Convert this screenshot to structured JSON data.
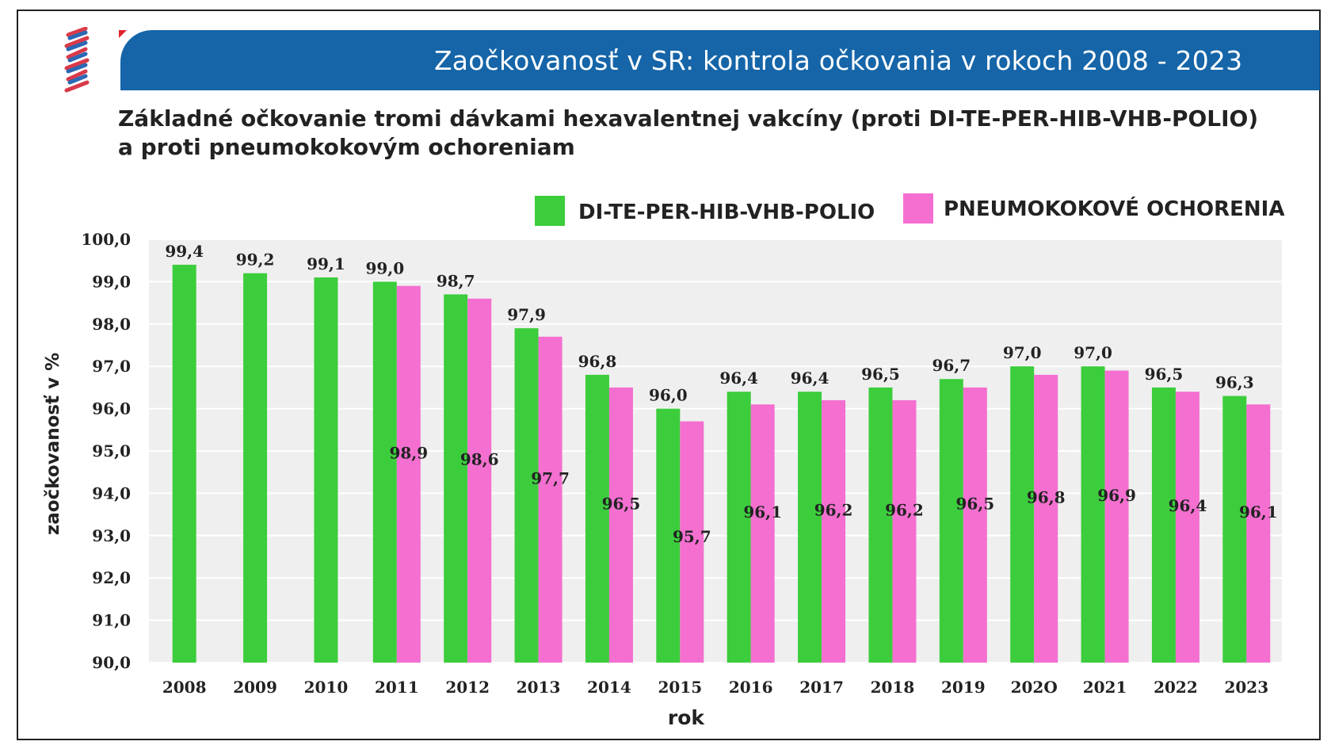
{
  "banner": {
    "title": "Zaočkovanosť v SR: kontrola očkovania v rokoch 2008 - 2023"
  },
  "colors": {
    "banner": "#1565a8",
    "series1": "#3ccd3c",
    "series2": "#f46fd0",
    "plot_bg": "#efefef"
  },
  "chart_data": {
    "type": "bar",
    "title": "Základné očkovanie tromi dávkami hexavalentnej vakcíny (proti DI-TE-PER-HIB-VHB-POLIO) a proti pneumokokovým ochoreniam",
    "title_lines": [
      "Základné očkovanie tromi dávkami hexavalentnej vakcíny (proti DI-TE-PER-HIB-VHB-POLIO)",
      "a proti pneumokokovým ochoreniam"
    ],
    "xlabel": "rok",
    "ylabel": "zaočkovanosť v %",
    "ylim": [
      90,
      100
    ],
    "yticks": [
      "100,0",
      "99,0",
      "98,0",
      "97,0",
      "96,0",
      "95,0",
      "94,0",
      "93,0",
      "92,0",
      "91,0",
      "90,0"
    ],
    "categories": [
      "2008",
      "2009",
      "2010",
      "2011",
      "2012",
      "2013",
      "2014",
      "2015",
      "2016",
      "2017",
      "2018",
      "2019",
      "202O",
      "2021",
      "2022",
      "2023"
    ],
    "series": [
      {
        "name": "DI-TE-PER-HIB-VHB-POLIO",
        "values": [
          99.4,
          99.2,
          99.1,
          99.0,
          98.7,
          97.9,
          96.8,
          96.0,
          96.4,
          96.4,
          96.5,
          96.7,
          97.0,
          97.0,
          96.5,
          96.3
        ],
        "labels": [
          "99,4",
          "99,2",
          "99,1",
          "99,0",
          "98,7",
          "97,9",
          "96,8",
          "96,0",
          "96,4",
          "96,4",
          "96,5",
          "96,7",
          "97,0",
          "97,0",
          "96,5",
          "96,3"
        ]
      },
      {
        "name": "PNEUMOKOKOVÉ OCHORENIA",
        "values": [
          null,
          null,
          null,
          98.9,
          98.6,
          97.7,
          96.5,
          95.7,
          96.1,
          96.2,
          96.2,
          96.5,
          96.8,
          96.9,
          96.4,
          96.1
        ],
        "labels": [
          "",
          "",
          "",
          "98,9",
          "98,6",
          "97,7",
          "96,5",
          "95,7",
          "96,1",
          "96,2",
          "96,2",
          "96,5",
          "96,8",
          "96,9",
          "96,4",
          "96,1"
        ]
      }
    ],
    "legend_position": "top-right",
    "grid": true
  }
}
